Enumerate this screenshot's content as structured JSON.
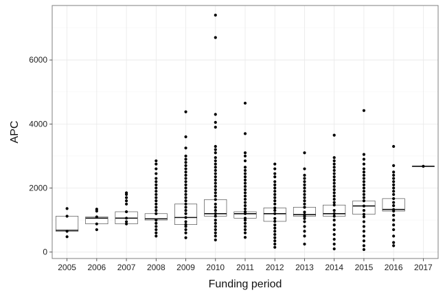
{
  "chart_data": {
    "type": "box",
    "title": "",
    "xlabel": "Funding period",
    "ylabel": "APC",
    "ylim": [
      -200,
      7700
    ],
    "yticks": [
      0,
      2000,
      4000,
      6000
    ],
    "grid": true,
    "categories": [
      "2005",
      "2006",
      "2007",
      "2008",
      "2009",
      "2010",
      "2011",
      "2012",
      "2013",
      "2014",
      "2015",
      "2016",
      "2017"
    ],
    "boxes": [
      {
        "q1": 650,
        "median": 680,
        "q3": 1120
      },
      {
        "q1": 880,
        "median": 1060,
        "q3": 1100
      },
      {
        "q1": 880,
        "median": 1060,
        "q3": 1260
      },
      {
        "q1": 1000,
        "median": 1040,
        "q3": 1200
      },
      {
        "q1": 860,
        "median": 1080,
        "q3": 1500
      },
      {
        "q1": 1120,
        "median": 1200,
        "q3": 1640
      },
      {
        "q1": 1060,
        "median": 1200,
        "q3": 1260
      },
      {
        "q1": 960,
        "median": 1200,
        "q3": 1380
      },
      {
        "q1": 1120,
        "median": 1170,
        "q3": 1400
      },
      {
        "q1": 1120,
        "median": 1200,
        "q3": 1470
      },
      {
        "q1": 1180,
        "median": 1440,
        "q3": 1600
      },
      {
        "q1": 1280,
        "median": 1330,
        "q3": 1670
      },
      {
        "q1": 2680,
        "median": 2680,
        "q3": 2680
      }
    ],
    "points": [
      [
        480,
        650,
        1120,
        1360
      ],
      [
        700,
        880,
        1100,
        1280,
        1340
      ],
      [
        880,
        950,
        1060,
        1260,
        1500,
        1600,
        1700,
        1800,
        1850
      ],
      [
        500,
        600,
        700,
        800,
        900,
        1000,
        1200,
        1300,
        1400,
        1500,
        1600,
        1700,
        1800,
        1900,
        2000,
        2100,
        2200,
        2300,
        2450,
        2600,
        2750,
        2850
      ],
      [
        450,
        600,
        700,
        800,
        860,
        950,
        1080,
        1200,
        1300,
        1400,
        1500,
        1600,
        1700,
        1800,
        1900,
        2000,
        2100,
        2200,
        2300,
        2400,
        2500,
        2600,
        2700,
        2800,
        2900,
        3000,
        3250,
        3600,
        4380
      ],
      [
        380,
        500,
        600,
        700,
        800,
        900,
        1000,
        1120,
        1200,
        1300,
        1400,
        1500,
        1640,
        1750,
        1850,
        1950,
        2050,
        2150,
        2250,
        2350,
        2450,
        2550,
        2650,
        2750,
        2850,
        2950,
        3100,
        3200,
        3300,
        3900,
        4050,
        4300,
        6700,
        7400
      ],
      [
        460,
        600,
        700,
        800,
        900,
        1000,
        1060,
        1200,
        1260,
        1350,
        1450,
        1550,
        1650,
        1750,
        1850,
        1950,
        2050,
        2150,
        2250,
        2350,
        2450,
        2550,
        2650,
        2850,
        3000,
        3100,
        3700,
        4650
      ],
      [
        150,
        250,
        350,
        450,
        550,
        650,
        750,
        850,
        960,
        1050,
        1200,
        1300,
        1380,
        1500,
        1600,
        1700,
        1800,
        1900,
        2000,
        2100,
        2200,
        2350,
        2450,
        2600,
        2750
      ],
      [
        250,
        500,
        650,
        800,
        950,
        1050,
        1120,
        1170,
        1250,
        1400,
        1500,
        1600,
        1700,
        1800,
        1900,
        2000,
        2100,
        2200,
        2300,
        2400,
        2600,
        3100
      ],
      [
        100,
        250,
        400,
        550,
        700,
        850,
        1000,
        1120,
        1200,
        1300,
        1470,
        1550,
        1650,
        1750,
        1850,
        1950,
        2050,
        2150,
        2250,
        2350,
        2450,
        2550,
        2650,
        2750,
        2850,
        2950,
        3650
      ],
      [
        80,
        200,
        350,
        500,
        650,
        800,
        950,
        1100,
        1180,
        1300,
        1440,
        1600,
        1700,
        1800,
        1900,
        2000,
        2100,
        2200,
        2300,
        2400,
        2500,
        2600,
        2750,
        2900,
        3050,
        4420
      ],
      [
        200,
        300,
        500,
        700,
        850,
        1000,
        1150,
        1280,
        1330,
        1450,
        1550,
        1670,
        1800,
        1900,
        2000,
        2100,
        2200,
        2300,
        2400,
        2500,
        2700,
        3300
      ],
      [
        2680
      ]
    ]
  }
}
